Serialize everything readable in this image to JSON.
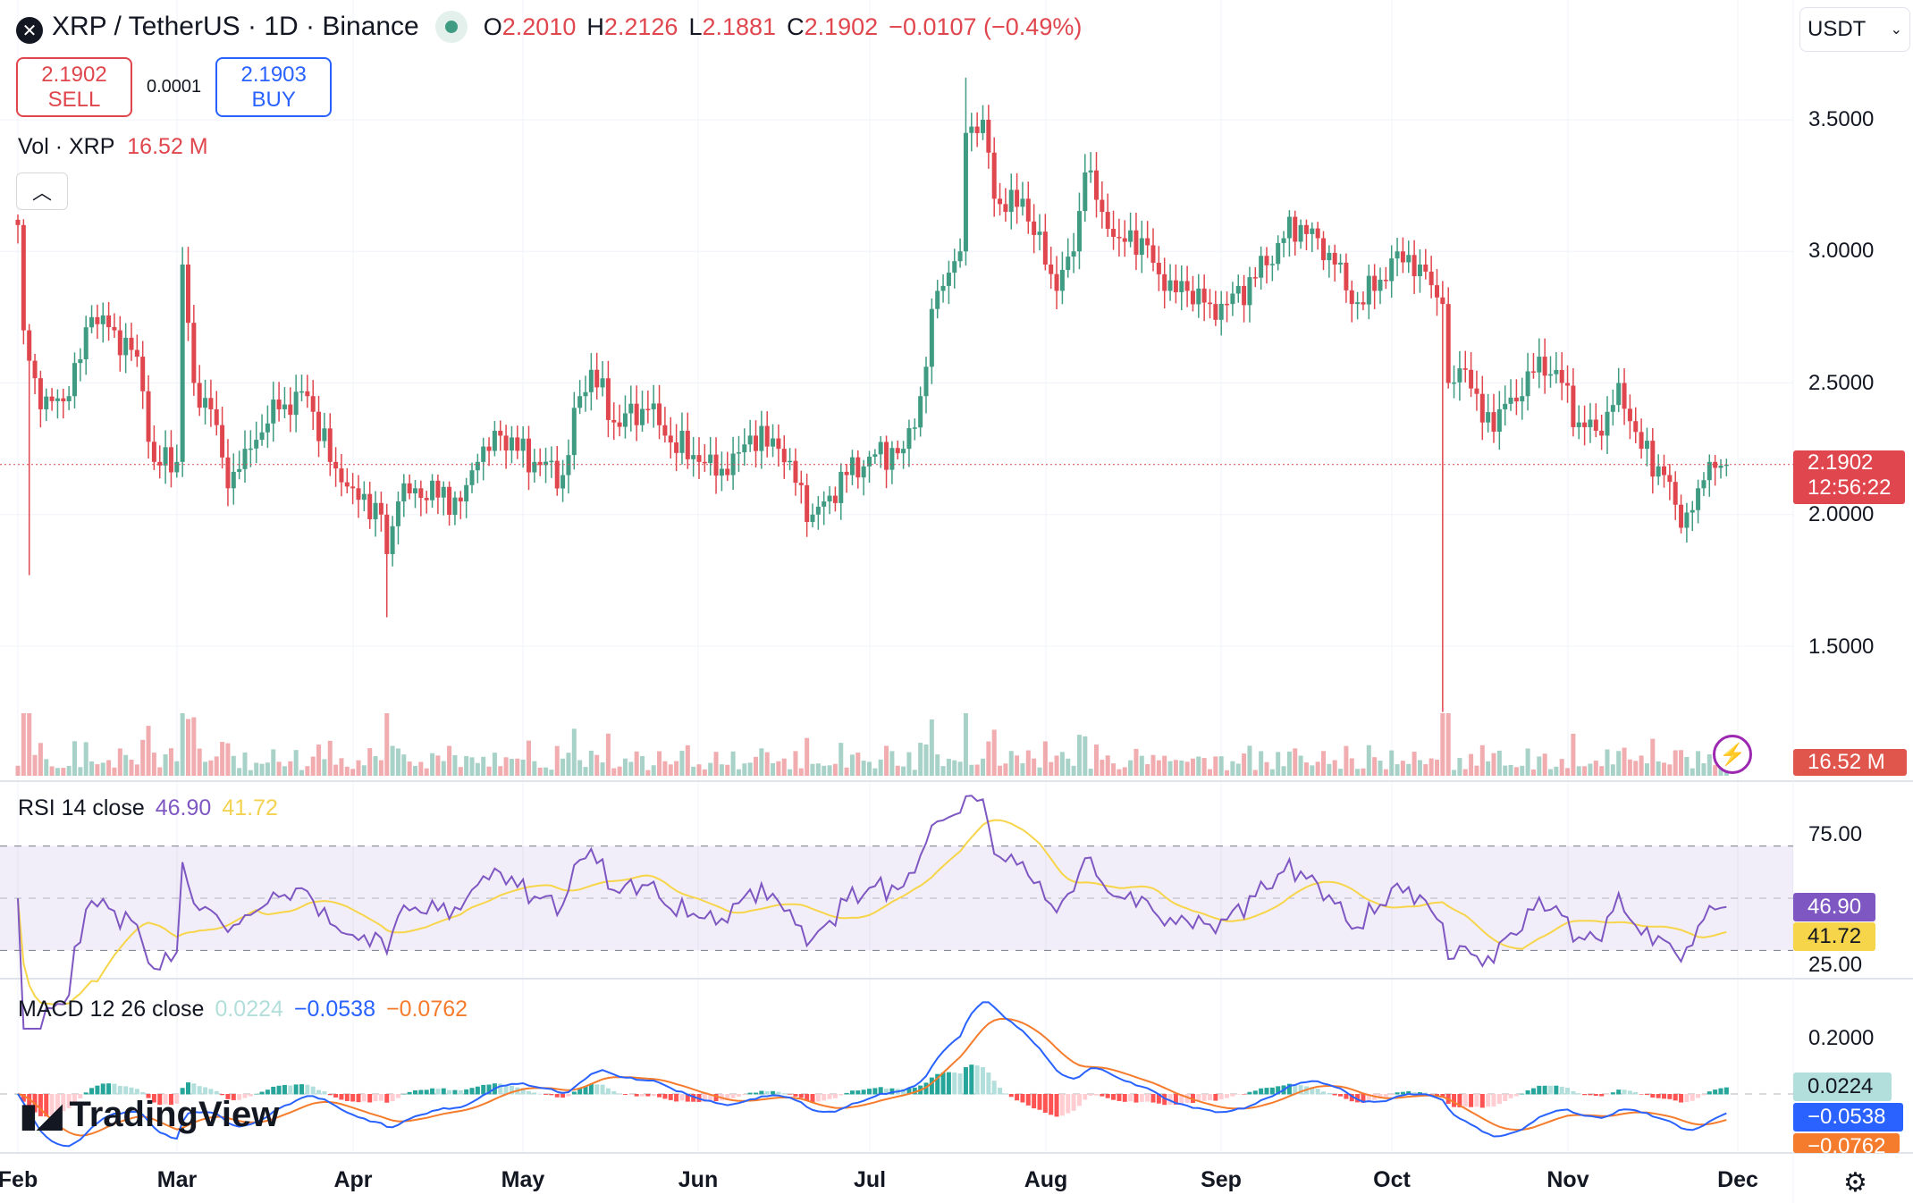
{
  "header": {
    "symbol_title": "XRP / TetherUS · 1D · Binance",
    "open_label": "O",
    "open": "2.2010",
    "high_label": "H",
    "high": "2.2126",
    "low_label": "L",
    "low": "2.1881",
    "close_label": "C",
    "close": "2.1902",
    "change": "−0.0107 (−0.49%)",
    "market_status_icon": "market-open-dot"
  },
  "trade": {
    "sell_price": "2.1902",
    "sell_label": "SELL",
    "spread": "0.0001",
    "buy_price": "2.1903",
    "buy_label": "BUY"
  },
  "volume": {
    "label": "Vol · XRP",
    "value": "16.52 M"
  },
  "currency_select": {
    "value": "USDT"
  },
  "price_axis": {
    "ticks": [
      "3.5000",
      "3.0000",
      "2.5000",
      "2.0000",
      "1.5000"
    ],
    "last_price": "2.1902",
    "countdown": "12:56:22",
    "volume_tag": "16.52 M"
  },
  "rsi": {
    "label": "RSI 14 close",
    "value": "46.90",
    "ma_value": "41.72",
    "ticks": [
      "75.00",
      "25.00"
    ],
    "color": "#7e57c2",
    "ma_color": "#f7d54a"
  },
  "macd": {
    "label": "MACD 12 26 close",
    "hist": "0.0224",
    "macd": "−0.0538",
    "signal": "−0.0762",
    "ticks": [
      "0.2000"
    ],
    "hist_color": "#b2dfdb",
    "macd_color": "#2962ff",
    "signal_color": "#f57c2c"
  },
  "time_axis": {
    "months": [
      "Feb",
      "Mar",
      "Apr",
      "May",
      "Jun",
      "Jul",
      "Aug",
      "Sep",
      "Oct",
      "Nov",
      "Dec"
    ]
  },
  "brand": "TradingView",
  "colors": {
    "up": "#3f9b82",
    "down": "#e0464d"
  },
  "chart_data": {
    "type": "candlestick",
    "y_range": [
      1.2,
      3.7
    ],
    "key_closes": [
      [
        "02-01",
        3.1
      ],
      [
        "02-02",
        2.7
      ],
      [
        "02-05",
        2.4
      ],
      [
        "02-10",
        2.45
      ],
      [
        "02-14",
        2.75
      ],
      [
        "02-18",
        2.7
      ],
      [
        "02-22",
        2.6
      ],
      [
        "02-25",
        2.2
      ],
      [
        "03-01",
        2.2
      ],
      [
        "03-02",
        2.95
      ],
      [
        "03-04",
        2.5
      ],
      [
        "03-07",
        2.4
      ],
      [
        "03-10",
        2.1
      ],
      [
        "03-13",
        2.25
      ],
      [
        "03-19",
        2.4
      ],
      [
        "03-24",
        2.45
      ],
      [
        "03-28",
        2.2
      ],
      [
        "04-01",
        2.1
      ],
      [
        "04-06",
        2.0
      ],
      [
        "04-07",
        1.85
      ],
      [
        "04-09",
        2.05
      ],
      [
        "04-12",
        2.1
      ],
      [
        "04-20",
        2.05
      ],
      [
        "04-23",
        2.2
      ],
      [
        "04-27",
        2.3
      ],
      [
        "05-03",
        2.2
      ],
      [
        "05-08",
        2.15
      ],
      [
        "05-11",
        2.45
      ],
      [
        "05-13",
        2.55
      ],
      [
        "05-17",
        2.35
      ],
      [
        "05-23",
        2.4
      ],
      [
        "05-26",
        2.3
      ],
      [
        "06-01",
        2.2
      ],
      [
        "06-06",
        2.15
      ],
      [
        "06-10",
        2.3
      ],
      [
        "06-15",
        2.25
      ],
      [
        "06-21",
        2.0
      ],
      [
        "06-23",
        2.05
      ],
      [
        "06-27",
        2.15
      ],
      [
        "07-01",
        2.22
      ],
      [
        "07-07",
        2.25
      ],
      [
        "07-10",
        2.45
      ],
      [
        "07-13",
        2.85
      ],
      [
        "07-17",
        3.0
      ],
      [
        "07-18",
        3.45
      ],
      [
        "07-21",
        3.5
      ],
      [
        "07-23",
        3.2
      ],
      [
        "07-25",
        3.15
      ],
      [
        "07-28",
        3.2
      ],
      [
        "08-01",
        2.95
      ],
      [
        "08-03",
        2.85
      ],
      [
        "08-06",
        3.0
      ],
      [
        "08-08",
        3.3
      ],
      [
        "08-11",
        3.15
      ],
      [
        "08-14",
        3.05
      ],
      [
        "08-18",
        3.05
      ],
      [
        "08-22",
        2.85
      ],
      [
        "08-26",
        2.85
      ],
      [
        "08-30",
        2.8
      ],
      [
        "09-02",
        2.8
      ],
      [
        "09-07",
        2.9
      ],
      [
        "09-12",
        3.05
      ],
      [
        "09-15",
        3.1
      ],
      [
        "09-18",
        3.05
      ],
      [
        "09-21",
        2.95
      ],
      [
        "09-24",
        2.8
      ],
      [
        "09-28",
        2.85
      ],
      [
        "10-02",
        3.0
      ],
      [
        "10-06",
        2.95
      ],
      [
        "10-10",
        2.8
      ],
      [
        "10-11",
        2.5
      ],
      [
        "10-14",
        2.55
      ],
      [
        "10-17",
        2.35
      ],
      [
        "10-20",
        2.4
      ],
      [
        "10-24",
        2.45
      ],
      [
        "10-27",
        2.6
      ],
      [
        "10-31",
        2.5
      ],
      [
        "11-03",
        2.35
      ],
      [
        "11-07",
        2.3
      ],
      [
        "11-10",
        2.5
      ],
      [
        "11-14",
        2.25
      ],
      [
        "11-18",
        2.15
      ],
      [
        "11-21",
        1.95
      ],
      [
        "11-24",
        2.1
      ],
      [
        "11-26",
        2.2
      ],
      [
        "11-29",
        2.19
      ]
    ],
    "wick_extremes": [
      [
        "02-03",
        1.77
      ],
      [
        "04-07",
        1.61
      ],
      [
        "07-18",
        3.66
      ],
      [
        "10-10",
        1.25
      ]
    ]
  }
}
